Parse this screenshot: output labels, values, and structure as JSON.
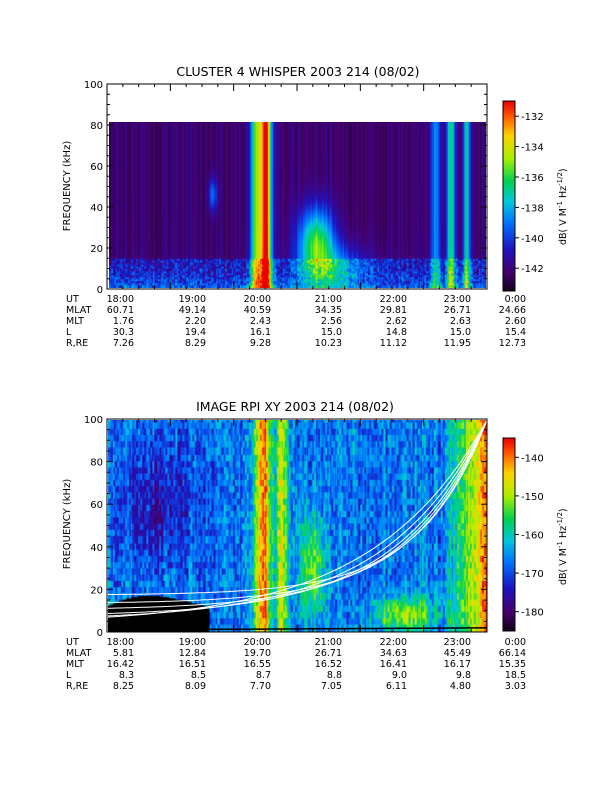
{
  "chart_data": [
    {
      "type": "heatmap",
      "title": "CLUSTER 4 WHISPER 2003 214 (08/02)",
      "ylabel": "FREQUENCY (kHz)",
      "ylim": [
        0,
        100
      ],
      "yticks": [
        "0",
        "20",
        "40",
        "60",
        "80",
        "100"
      ],
      "data_max_freq": 80,
      "x_hours": [
        18,
        24
      ],
      "colorbar": {
        "ticks": [
          "-132",
          "-134",
          "-136",
          "-138",
          "-140",
          "-142"
        ],
        "tick_values": [
          -132,
          -134,
          -136,
          -138,
          -140,
          -142
        ],
        "range": [
          -143.5,
          -131
        ],
        "label_main": "dB( V M",
        "label_sup1": "-1",
        "label_mid": " Hz",
        "label_sup2": "-1/2",
        "label_end": ")"
      },
      "ephemeris": {
        "row_labels": [
          "UT",
          "MLAT",
          "MLT",
          "L",
          "R,RE"
        ],
        "columns": [
          [
            "18:00",
            "60.71",
            "1.76",
            "30.3",
            "7.26"
          ],
          [
            "19:00",
            "49.14",
            "2.20",
            "19.4",
            "8.29"
          ],
          [
            "20:00",
            "40.59",
            "2.43",
            "16.1",
            "9.28"
          ],
          [
            "21:00",
            "34.35",
            "2.56",
            "15.0",
            "10.23"
          ],
          [
            "22:00",
            "29.81",
            "2.62",
            "14.8",
            "11.12"
          ],
          [
            "23:00",
            "26.71",
            "2.63",
            "15.0",
            "11.95"
          ],
          [
            "0:00",
            "24.66",
            "2.60",
            "15.4",
            "12.73"
          ]
        ]
      }
    },
    {
      "type": "heatmap",
      "title": "IMAGE RPI XY 2003 214 (08/02)",
      "ylabel": "FREQUENCY (kHz)",
      "ylim": [
        0,
        100
      ],
      "yticks": [
        "0",
        "20",
        "40",
        "60",
        "80",
        "100"
      ],
      "x_hours": [
        18,
        24
      ],
      "colorbar": {
        "ticks": [
          "-140",
          "-150",
          "-160",
          "-170",
          "-180"
        ],
        "tick_values": [
          -140,
          -150,
          -160,
          -170,
          -180
        ],
        "range": [
          -185,
          -135
        ],
        "label_main": "dB( V M",
        "label_sup1": "-1",
        "label_mid": " Hz",
        "label_sup2": "-1/2",
        "label_end": ")"
      },
      "ephemeris": {
        "row_labels": [
          "UT",
          "MLAT",
          "MLT",
          "L",
          "R,RE"
        ],
        "columns": [
          [
            "18:00",
            "5.81",
            "16.42",
            "8.3",
            "8.25"
          ],
          [
            "19:00",
            "12.84",
            "16.51",
            "8.5",
            "8.09"
          ],
          [
            "20:00",
            "19.70",
            "16.55",
            "8.7",
            "7.70"
          ],
          [
            "21:00",
            "26.71",
            "16.52",
            "8.8",
            "7.05"
          ],
          [
            "22:00",
            "34.63",
            "16.41",
            "9.0",
            "6.11"
          ],
          [
            "23:00",
            "45.49",
            "16.17",
            "9.8",
            "4.80"
          ],
          [
            "0:00",
            "66.14",
            "15.35",
            "18.5",
            "3.03"
          ]
        ]
      }
    }
  ]
}
